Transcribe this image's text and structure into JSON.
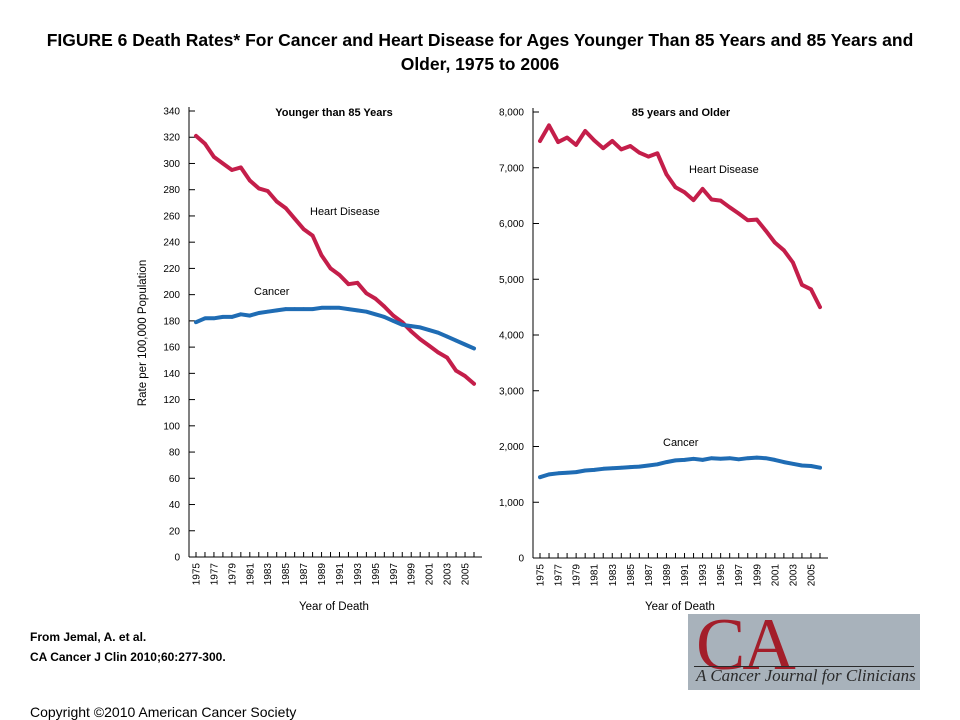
{
  "figure": {
    "title": "FIGURE 6 Death Rates* For Cancer and Heart Disease for Ages Younger Than 85 Years and 85 Years and Older, 1975 to 2006",
    "citation_line1": "From Jemal, A. et al.",
    "citation_line2": "CA Cancer J Clin 2010;60:277-300.",
    "copyright": "Copyright ©2010 American Cancer Society",
    "logo_text": "CA",
    "logo_subtitle": "A Cancer Journal for Clinicians"
  },
  "colors": {
    "heart": "#c41e4a",
    "cancer": "#1f6cb4",
    "axis": "#000000"
  },
  "chart_data": [
    {
      "type": "line",
      "title": "Younger than 85 Years",
      "xlabel": "Year of Death",
      "ylabel": "Rate per 100,000 Population",
      "ylim": [
        0,
        340
      ],
      "y_ticks": [
        0,
        20,
        40,
        60,
        80,
        100,
        120,
        140,
        160,
        180,
        200,
        220,
        240,
        260,
        280,
        300,
        320,
        340
      ],
      "y_tick_labels": [
        "0",
        "20",
        "40",
        "60",
        "80",
        "100",
        "120",
        "140",
        "160",
        "180",
        "200",
        "220",
        "240",
        "260",
        "280",
        "300",
        "320",
        "340"
      ],
      "x_ticks": [
        "1975",
        "1977",
        "1979",
        "1981",
        "1983",
        "1985",
        "1987",
        "1989",
        "1991",
        "1993",
        "1995",
        "1997",
        "1999",
        "2001",
        "2003",
        "2005"
      ],
      "x": [
        1975,
        1976,
        1977,
        1978,
        1979,
        1980,
        1981,
        1982,
        1983,
        1984,
        1985,
        1986,
        1987,
        1988,
        1989,
        1990,
        1991,
        1992,
        1993,
        1994,
        1995,
        1996,
        1997,
        1998,
        1999,
        2000,
        2001,
        2002,
        2003,
        2004,
        2005,
        2006
      ],
      "grid": false,
      "series": [
        {
          "name": "Heart Disease",
          "color_key": "heart",
          "values": [
            321,
            315,
            305,
            300,
            295,
            297,
            287,
            281,
            279,
            271,
            266,
            258,
            250,
            245,
            230,
            220,
            215,
            208,
            209,
            201,
            197,
            191,
            184,
            179,
            172,
            166,
            161,
            156,
            152,
            142,
            138,
            132
          ]
        },
        {
          "name": "Cancer",
          "color_key": "cancer",
          "values": [
            179,
            182,
            182,
            183,
            183,
            185,
            184,
            186,
            187,
            188,
            189,
            189,
            189,
            189,
            190,
            190,
            190,
            189,
            188,
            187,
            185,
            183,
            180,
            177,
            176,
            175,
            173,
            171,
            168,
            165,
            162,
            159
          ]
        }
      ]
    },
    {
      "type": "line",
      "title": "85 years and Older",
      "xlabel": "Year of Death",
      "ylim": [
        0,
        8000
      ],
      "y_ticks": [
        0,
        1000,
        2000,
        3000,
        4000,
        5000,
        6000,
        7000,
        8000
      ],
      "y_tick_labels": [
        "0",
        "1,000",
        "2,000",
        "3,000",
        "4,000",
        "5,000",
        "6,000",
        "7,000",
        "8,000"
      ],
      "x_ticks": [
        "1975",
        "1977",
        "1979",
        "1981",
        "1983",
        "1985",
        "1987",
        "1989",
        "1991",
        "1993",
        "1995",
        "1997",
        "1999",
        "2001",
        "2003",
        "2005"
      ],
      "x": [
        1975,
        1976,
        1977,
        1978,
        1979,
        1980,
        1981,
        1982,
        1983,
        1984,
        1985,
        1986,
        1987,
        1988,
        1989,
        1990,
        1991,
        1992,
        1993,
        1994,
        1995,
        1996,
        1997,
        1998,
        1999,
        2000,
        2001,
        2002,
        2003,
        2004,
        2005,
        2006
      ],
      "grid": false,
      "series": [
        {
          "name": "Heart Disease",
          "color_key": "heart",
          "values": [
            7480,
            7760,
            7460,
            7540,
            7410,
            7660,
            7490,
            7350,
            7480,
            7330,
            7390,
            7270,
            7200,
            7260,
            6880,
            6650,
            6560,
            6420,
            6620,
            6430,
            6410,
            6290,
            6180,
            6060,
            6070,
            5870,
            5660,
            5520,
            5300,
            4900,
            4820,
            4500
          ]
        },
        {
          "name": "Cancer",
          "color_key": "cancer",
          "values": [
            1450,
            1500,
            1520,
            1530,
            1540,
            1570,
            1580,
            1600,
            1610,
            1620,
            1630,
            1640,
            1660,
            1680,
            1720,
            1750,
            1760,
            1780,
            1760,
            1790,
            1780,
            1790,
            1770,
            1790,
            1800,
            1790,
            1760,
            1720,
            1690,
            1660,
            1650,
            1620
          ]
        }
      ]
    }
  ]
}
